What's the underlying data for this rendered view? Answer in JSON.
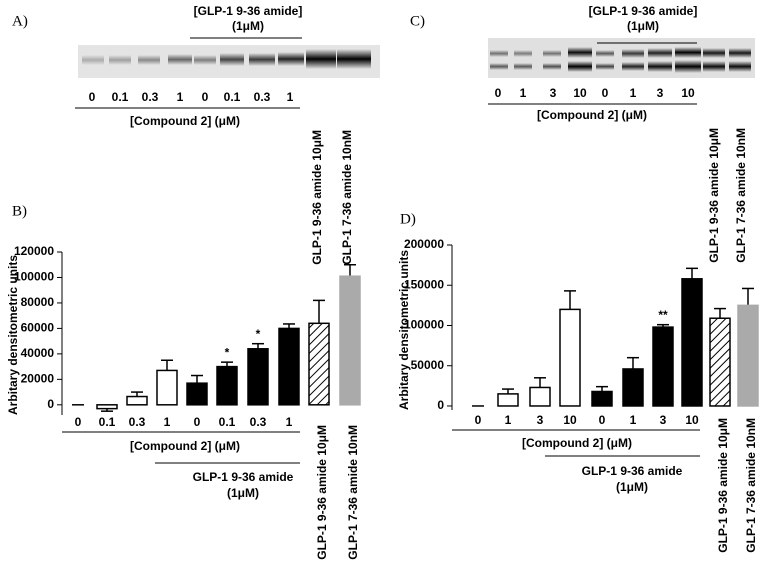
{
  "blots": [
    {
      "panel_label": "A)",
      "bracket": [
        "[GLP-1 9-36 amide]",
        "(1μM)"
      ],
      "lanes": [
        "0",
        "0.1",
        "0.3",
        "1",
        "0",
        "0.1",
        "0.3",
        "1"
      ],
      "compound": "[Compound 2] (μM)",
      "controls": [
        "GLP-1 9-36 amide 10μM",
        "GLP-1 7-36 amide 10nM"
      ]
    },
    {
      "panel_label": "C)",
      "bracket": [
        "[GLP-1 9-36 amide]",
        "(1μM)"
      ],
      "lanes": [
        "0",
        "1",
        "3",
        "10",
        "0",
        "1",
        "3",
        "10"
      ],
      "compound": "[Compound 2] (μM)",
      "controls": [
        "GLP-1 9-36 amide 10μM",
        "GLP-1 7-36 amide 10nM"
      ]
    }
  ],
  "chart_data": [
    {
      "type": "bar",
      "panel_label": "B)",
      "ylabel": "Arbitary densitometric units",
      "categories": [
        "0",
        "0.1",
        "0.3",
        "1",
        "0",
        "0.1",
        "0.3",
        "1",
        "GLP-1 9-36 amide 10μM",
        "GLP-1 7-36 amide 10nM"
      ],
      "values": [
        0,
        -3000,
        6500,
        27000,
        17000,
        30000,
        44000,
        60000,
        64000,
        101000
      ],
      "errors": [
        0,
        2000,
        3500,
        8000,
        6000,
        3500,
        4000,
        3500,
        18000,
        9000
      ],
      "bar_styles": [
        "open",
        "open",
        "open",
        "open",
        "solid",
        "solid",
        "solid",
        "solid",
        "hatched",
        "gray"
      ],
      "significance": [
        null,
        null,
        null,
        null,
        null,
        "*",
        "*",
        null,
        null,
        null
      ],
      "group_labels": {
        "compound": "[Compound 2] (μM)",
        "treatment": [
          "GLP-1 9-36 amide",
          "(1μM)"
        ]
      },
      "ylim": [
        -8000,
        120000
      ],
      "yticks": [
        0,
        20000,
        40000,
        60000,
        80000,
        100000,
        120000
      ]
    },
    {
      "type": "bar",
      "panel_label": "D)",
      "ylabel": "Arbitary densitometric units",
      "categories": [
        "0",
        "1",
        "3",
        "10",
        "0",
        "1",
        "3",
        "10",
        "GLP-1 9-36 amide 10μM",
        "GLP-1 7-36 amide 10nM"
      ],
      "values": [
        0,
        15000,
        23000,
        120000,
        18000,
        46000,
        98000,
        158000,
        109000,
        125000
      ],
      "errors": [
        0,
        6000,
        12000,
        23000,
        6000,
        14000,
        3000,
        13000,
        12000,
        21000
      ],
      "bar_styles": [
        "open",
        "open",
        "open",
        "open",
        "solid",
        "solid",
        "solid",
        "solid",
        "hatched",
        "gray"
      ],
      "significance": [
        null,
        null,
        null,
        null,
        null,
        null,
        "**",
        null,
        null,
        null
      ],
      "group_labels": {
        "compound": "[Compound 2] (μM)",
        "treatment": [
          "GLP-1 9-36 amide",
          "(1μM)"
        ]
      },
      "ylim": [
        -5000,
        200000
      ],
      "yticks": [
        0,
        50000,
        100000,
        150000,
        200000
      ]
    }
  ]
}
